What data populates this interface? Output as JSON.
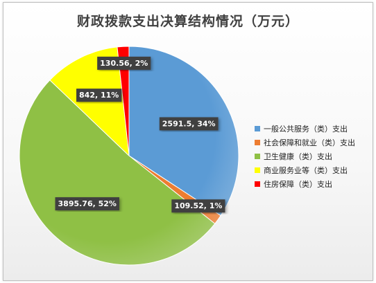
{
  "title": "财政拨款支出决算结构情况（万元）",
  "chart_data": {
    "type": "pie",
    "title": "财政拨款支出决算结构情况（万元）",
    "legend_position": "right",
    "slices": [
      {
        "name": "一般公共服务（类）支出",
        "value": 2591.5,
        "label": "2591.5, 34%",
        "color": "#5B9BD5"
      },
      {
        "name": "社会保障和就业（类）支出",
        "value": 109.52,
        "label": "109.52, 1%",
        "color": "#ED7D31"
      },
      {
        "name": "卫生健康（类）支出",
        "value": 3895.76,
        "label": "3895.76, 52%",
        "color": "#8FC045"
      },
      {
        "name": "商业服务业等（类）支出",
        "value": 842,
        "label": "842, 11%",
        "color": "#FFFF00"
      },
      {
        "name": "住房保障（类）支出",
        "value": 130.56,
        "label": "130.56, 2%",
        "color": "#FF0000"
      }
    ]
  }
}
